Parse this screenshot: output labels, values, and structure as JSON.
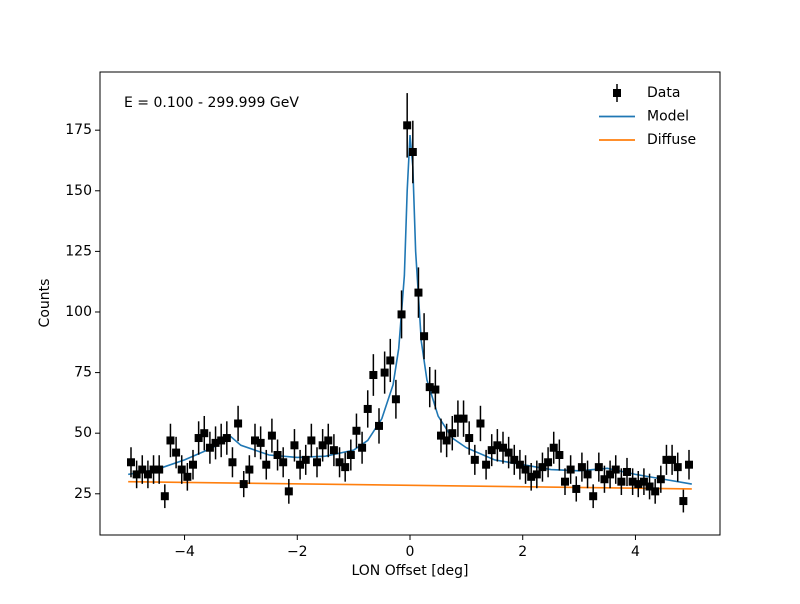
{
  "chart_data": {
    "type": "errorbar",
    "annotation": "E = 0.100 - 299.999 GeV",
    "xlabel": "LON Offset [deg]",
    "ylabel": "Counts",
    "xlim": [
      -5.5,
      5.5
    ],
    "ylim": [
      8,
      199
    ],
    "xticks": [
      {
        "value": -4,
        "label": "−4"
      },
      {
        "value": -2,
        "label": "−2"
      },
      0,
      2,
      4
    ],
    "yticks": [
      25,
      50,
      75,
      100,
      125,
      150,
      175
    ],
    "legend": "upper right",
    "series": [
      {
        "name": "Data",
        "color": "#000000",
        "kind": "errorbar",
        "x": [
          -4.95,
          -4.85,
          -4.75,
          -4.65,
          -4.55,
          -4.45,
          -4.35,
          -4.25,
          -4.15,
          -4.05,
          -3.95,
          -3.85,
          -3.75,
          -3.65,
          -3.55,
          -3.45,
          -3.35,
          -3.25,
          -3.15,
          -3.05,
          -2.95,
          -2.85,
          -2.75,
          -2.65,
          -2.55,
          -2.45,
          -2.35,
          -2.25,
          -2.15,
          -2.05,
          -1.95,
          -1.85,
          -1.75,
          -1.65,
          -1.55,
          -1.45,
          -1.35,
          -1.25,
          -1.15,
          -1.05,
          -0.95,
          -0.85,
          -0.75,
          -0.65,
          -0.55,
          -0.45,
          -0.35,
          -0.25,
          -0.15,
          -0.05,
          0.05,
          0.15,
          0.25,
          0.35,
          0.45,
          0.55,
          0.65,
          0.75,
          0.85,
          0.95,
          1.05,
          1.15,
          1.25,
          1.35,
          1.45,
          1.55,
          1.65,
          1.75,
          1.85,
          1.95,
          2.05,
          2.15,
          2.25,
          2.35,
          2.45,
          2.55,
          2.65,
          2.75,
          2.85,
          2.95,
          3.05,
          3.15,
          3.25,
          3.35,
          3.45,
          3.55,
          3.65,
          3.75,
          3.85,
          3.95,
          4.05,
          4.15,
          4.25,
          4.35,
          4.45,
          4.55,
          4.65,
          4.75,
          4.85,
          4.95
        ],
        "values": [
          38,
          33,
          35,
          33,
          35,
          35,
          24,
          47,
          42,
          35,
          32,
          37,
          48,
          50,
          44,
          46,
          47,
          48,
          38,
          54,
          29,
          35,
          47,
          46,
          37,
          49,
          41,
          38,
          26,
          45,
          37,
          39,
          47,
          38,
          45,
          47,
          43,
          38,
          36,
          41,
          51,
          44,
          60,
          74,
          53,
          75,
          80,
          64,
          99,
          177,
          166,
          108,
          90,
          69,
          68,
          49,
          47,
          50,
          56,
          56,
          48,
          39,
          54,
          37,
          43,
          45,
          44,
          42,
          39,
          37,
          35,
          32,
          33,
          36,
          38,
          44,
          41,
          30,
          35,
          27,
          36,
          33,
          24,
          36,
          31,
          33,
          35,
          30,
          34,
          30,
          29,
          30,
          28,
          26,
          31,
          39,
          39,
          36,
          22,
          37
        ],
        "errors": [
          6.2,
          5.7,
          5.9,
          5.7,
          5.9,
          5.9,
          4.9,
          6.9,
          6.5,
          5.9,
          5.7,
          6.1,
          6.9,
          7.1,
          6.6,
          6.8,
          6.9,
          6.9,
          6.2,
          7.3,
          5.4,
          5.9,
          6.9,
          6.8,
          6.1,
          7.0,
          6.4,
          6.2,
          5.1,
          6.7,
          6.1,
          6.2,
          6.9,
          6.2,
          6.7,
          6.9,
          6.6,
          6.2,
          6.0,
          6.4,
          7.1,
          6.6,
          7.7,
          8.6,
          7.3,
          8.7,
          8.9,
          8.0,
          9.9,
          13.3,
          12.9,
          10.4,
          9.5,
          8.3,
          8.2,
          7.0,
          6.9,
          7.1,
          7.5,
          7.5,
          6.9,
          6.2,
          7.3,
          6.1,
          6.6,
          6.7,
          6.6,
          6.5,
          6.2,
          6.1,
          5.9,
          5.7,
          5.7,
          6.0,
          6.2,
          6.6,
          6.4,
          5.5,
          5.9,
          5.2,
          6.0,
          5.7,
          4.9,
          6.0,
          5.6,
          5.7,
          5.9,
          5.5,
          5.8,
          5.5,
          5.4,
          5.5,
          5.3,
          5.1,
          5.6,
          6.2,
          6.2,
          6.0,
          4.7,
          6.1
        ]
      },
      {
        "name": "Model",
        "color": "#1f77b4",
        "kind": "line",
        "x": [
          -5,
          -4.5,
          -4,
          -3.5,
          -3.2,
          -3,
          -2.5,
          -2,
          -1.5,
          -1,
          -0.75,
          -0.5,
          -0.3,
          -0.2,
          -0.1,
          -0.05,
          0,
          0.05,
          0.1,
          0.2,
          0.3,
          0.5,
          0.75,
          1,
          1.5,
          2,
          2.5,
          3,
          3.5,
          4,
          4.5,
          5
        ],
        "values": [
          33,
          35,
          39,
          44,
          49,
          45,
          41,
          40,
          40.5,
          43,
          47,
          56,
          70,
          85,
          115,
          150,
          173,
          160,
          125,
          88,
          72,
          57,
          48,
          44,
          39,
          37,
          35,
          34.5,
          35.5,
          33,
          31,
          29
        ]
      },
      {
        "name": "Diffuse",
        "color": "#ff7f0e",
        "kind": "line",
        "x": [
          -5,
          5
        ],
        "values": [
          30,
          27
        ]
      }
    ]
  }
}
